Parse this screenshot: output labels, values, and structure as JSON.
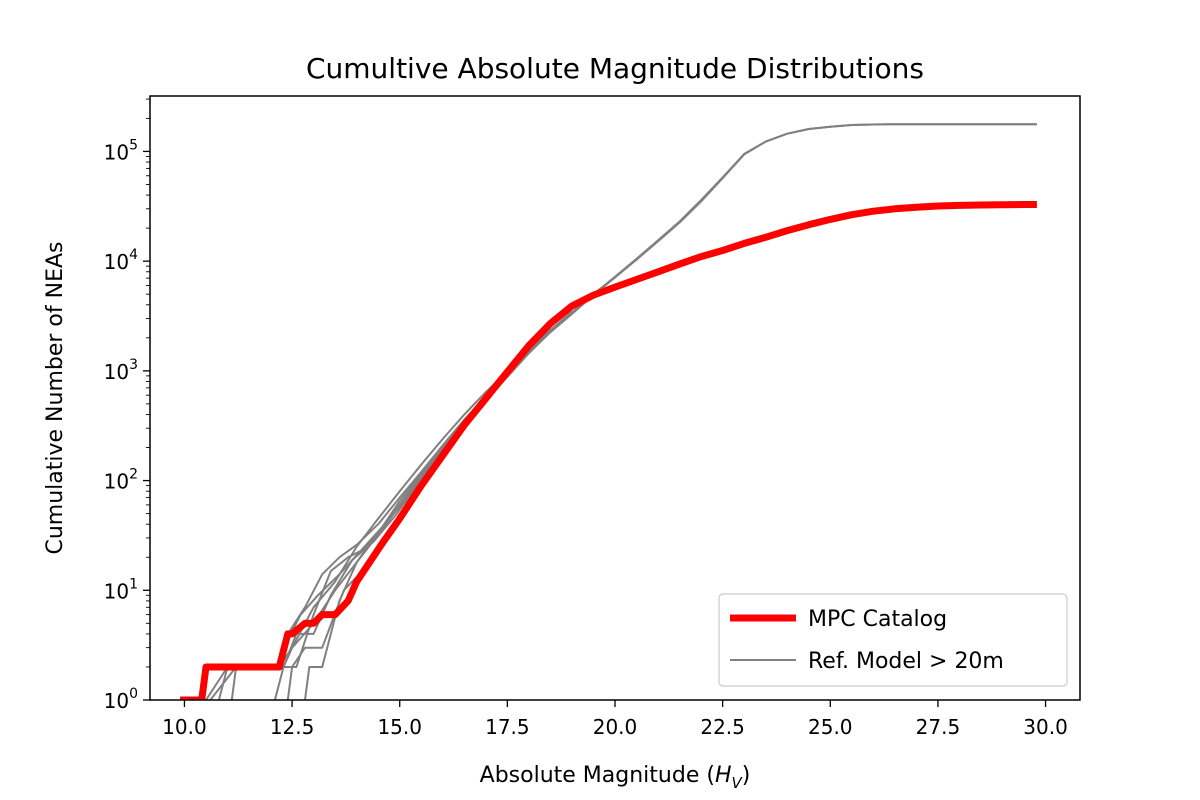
{
  "chart_data": {
    "type": "line",
    "title": "Cumultive Absolute Magnitude Distributions",
    "xlabel_prefix": "Absolute Magnitude (",
    "xlabel_var": "H",
    "xlabel_sub": "V",
    "xlabel_suffix": ")",
    "ylabel": "Cumulative Number of NEAs",
    "xlim": [
      9.2,
      30.8
    ],
    "ylim": [
      1,
      320000
    ],
    "yscale": "log",
    "x_ticks": [
      10.0,
      12.5,
      15.0,
      17.5,
      20.0,
      22.5,
      25.0,
      27.5,
      30.0
    ],
    "x_tick_labels": [
      "10.0",
      "12.5",
      "15.0",
      "17.5",
      "20.0",
      "22.5",
      "25.0",
      "27.5",
      "30.0"
    ],
    "y_ticks": [
      {
        "value": 1,
        "base": "10",
        "exp": "0"
      },
      {
        "value": 10,
        "base": "10",
        "exp": "1"
      },
      {
        "value": 100,
        "base": "10",
        "exp": "2"
      },
      {
        "value": 1000,
        "base": "10",
        "exp": "3"
      },
      {
        "value": 10000,
        "base": "10",
        "exp": "4"
      },
      {
        "value": 100000,
        "base": "10",
        "exp": "5"
      }
    ],
    "grid": false,
    "legend_position": "lower-right",
    "legend": [
      {
        "label": "MPC Catalog",
        "color": "#ff0000"
      },
      {
        "label": "Ref. Model > 20m",
        "color": "#808080"
      }
    ],
    "series": [
      {
        "name": "MPC Catalog",
        "color": "#ff0000",
        "x": [
          9.9,
          10.4,
          10.5,
          11.0,
          12.2,
          12.4,
          12.5,
          12.8,
          13.0,
          13.2,
          13.5,
          13.8,
          14.0,
          14.3,
          14.6,
          15.0,
          15.5,
          16.0,
          16.5,
          17.0,
          17.5,
          18.0,
          18.5,
          19.0,
          19.5,
          20.0,
          20.5,
          21.0,
          21.5,
          22.0,
          22.5,
          23.0,
          23.5,
          24.0,
          24.5,
          25.0,
          25.5,
          26.0,
          26.5,
          27.0,
          27.5,
          28.0,
          28.5,
          29.0,
          29.5,
          29.8
        ],
        "y": [
          1,
          1,
          2,
          2,
          2,
          4,
          4,
          5,
          5,
          6,
          6,
          8,
          12,
          18,
          27,
          45,
          90,
          170,
          320,
          560,
          980,
          1700,
          2700,
          3900,
          4900,
          5800,
          6800,
          8000,
          9400,
          11000,
          12500,
          14500,
          16500,
          19000,
          21500,
          24000,
          26500,
          28500,
          30000,
          31000,
          31800,
          32200,
          32500,
          32700,
          32800,
          32800
        ],
        "width": 7
      },
      {
        "name": "",
        "color": "#808080",
        "x": [
          10.5,
          11.0,
          12.0,
          12.3,
          12.5,
          13.0,
          13.5,
          14.0,
          14.5,
          15.0,
          15.5,
          16.0,
          16.5,
          17.0,
          17.5,
          18.0,
          18.5,
          19.0,
          19.5,
          20.0,
          20.5,
          21.0,
          21.5,
          22.0,
          22.5,
          23.0,
          23.5,
          24.0,
          24.5,
          25.0,
          25.5,
          26.0,
          26.5,
          27.0,
          28.0,
          29.0,
          29.8
        ],
        "y": [
          1,
          2,
          2,
          2,
          3,
          7,
          12,
          25,
          45,
          80,
          140,
          240,
          400,
          640,
          980,
          1500,
          2300,
          3400,
          5000,
          7200,
          10500,
          15500,
          23000,
          36000,
          58000,
          95000,
          123000,
          145000,
          160000,
          168000,
          174000,
          176000,
          177000,
          177000,
          177000,
          177000,
          177000
        ],
        "width": 2
      },
      {
        "name": "Ref. Model > 20m",
        "color": "#808080",
        "x": [
          10.4,
          10.5,
          11.0,
          12.2,
          12.4,
          12.8,
          13.2,
          13.6,
          14.0,
          14.5,
          15.0,
          15.5,
          16.0,
          16.5,
          17.0,
          17.5,
          18.0,
          18.5,
          19.0,
          19.5,
          20.0,
          20.5,
          21.0,
          21.5,
          22.0,
          22.5,
          23.0,
          23.5,
          24.0,
          24.5,
          25.0,
          25.5,
          26.0,
          26.5,
          27.0,
          28.0,
          29.0,
          29.8
        ],
        "y": [
          1,
          2,
          2,
          2,
          4,
          7,
          14,
          20,
          26,
          40,
          70,
          120,
          210,
          360,
          580,
          920,
          1450,
          2250,
          3300,
          4900,
          7100,
          10300,
          15200,
          22500,
          35000,
          57000,
          94000,
          123000,
          145000,
          160000,
          168000,
          174000,
          176000,
          177000,
          177000,
          177000,
          177000,
          177000
        ],
        "width": 2
      },
      {
        "name": "",
        "color": "#808080",
        "x": [
          10.6,
          11.2,
          12.1,
          12.6,
          13.0,
          13.4,
          13.8,
          14.2,
          14.6,
          15.0,
          15.5,
          16.0,
          16.5,
          17.0,
          17.5,
          18.0,
          18.5,
          19.0
        ],
        "y": [
          1,
          2,
          2,
          2,
          6,
          15,
          20,
          24,
          36,
          60,
          110,
          190,
          350,
          600,
          950,
          1550,
          2350,
          3450
        ],
        "width": 2
      },
      {
        "name": "",
        "color": "#808080",
        "x": [
          10.8,
          11.0,
          12.2,
          12.3,
          12.7,
          13.1,
          13.6,
          14.1,
          14.6,
          15.0,
          15.5,
          16.0,
          16.5,
          17.0,
          17.5,
          18.0,
          18.5,
          19.0
        ],
        "y": [
          1,
          2,
          2,
          3,
          6,
          9,
          14,
          23,
          38,
          65,
          115,
          200,
          340,
          560,
          900,
          1480,
          2300,
          3350
        ],
        "width": 2
      },
      {
        "name": "",
        "color": "#808080",
        "x": [
          11.1,
          11.2,
          12.2,
          12.5,
          13.0,
          13.5,
          14.0,
          14.5,
          15.0,
          15.5,
          16.0,
          16.5,
          17.0,
          17.5,
          18.0,
          18.5,
          19.0
        ],
        "y": [
          1,
          2,
          2,
          3,
          5,
          10,
          18,
          32,
          60,
          105,
          185,
          330,
          540,
          880,
          1450,
          2280,
          3330
        ],
        "width": 2
      },
      {
        "name": "",
        "color": "#808080",
        "x": [
          12.1,
          12.3,
          12.6,
          13.0,
          13.4,
          13.9,
          14.4,
          14.9,
          15.4,
          16.0,
          16.5,
          17.0,
          17.5,
          18.0
        ],
        "y": [
          1,
          2,
          4,
          4,
          9,
          19,
          28,
          48,
          90,
          205,
          345,
          570,
          920,
          1490
        ],
        "width": 2
      },
      {
        "name": "",
        "color": "#808080",
        "x": [
          12.4,
          12.5,
          12.8,
          13.2,
          13.7,
          14.2,
          14.7,
          15.2,
          15.7,
          16.2,
          16.7,
          17.2,
          17.7,
          18.2
        ],
        "y": [
          1,
          2,
          3,
          3,
          10,
          16,
          30,
          55,
          110,
          230,
          390,
          680,
          1100,
          1750
        ],
        "width": 2
      },
      {
        "name": "",
        "color": "#808080",
        "x": [
          12.8,
          12.9,
          13.2,
          13.6,
          14.0,
          14.5,
          15.0,
          15.5,
          16.0,
          16.5,
          17.0,
          17.5,
          18.0
        ],
        "y": [
          1,
          2,
          2,
          8,
          18,
          34,
          58,
          100,
          180,
          330,
          560,
          900,
          1480
        ],
        "width": 2
      }
    ]
  }
}
